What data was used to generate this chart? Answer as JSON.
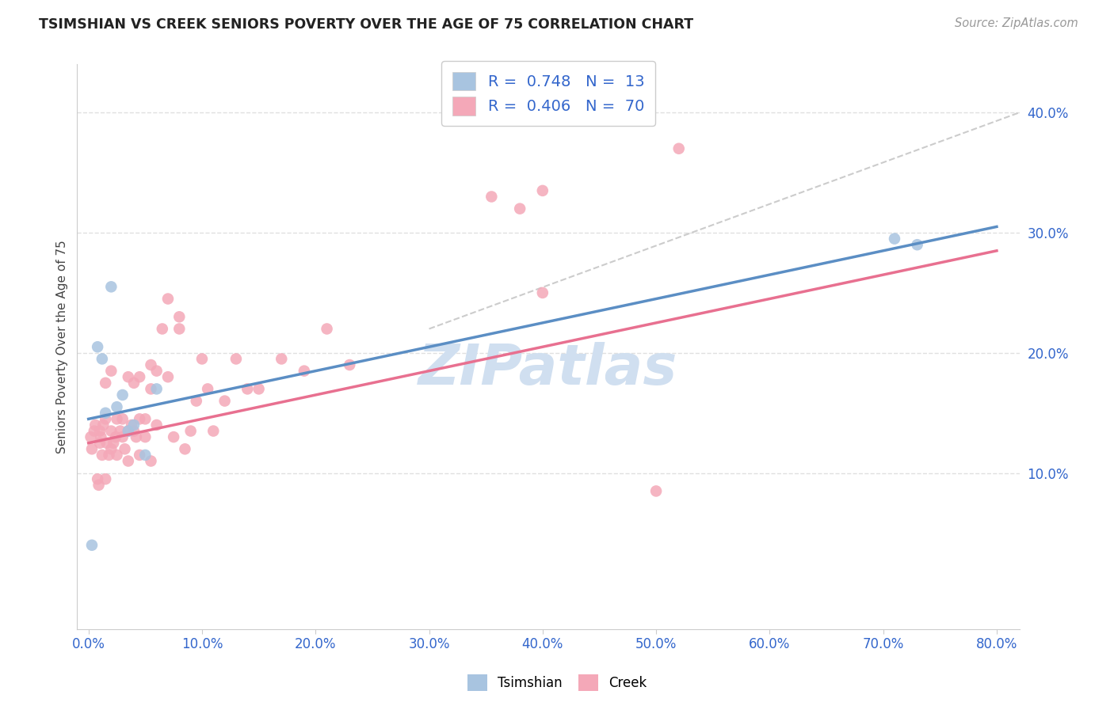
{
  "title": "TSIMSHIAN VS CREEK SENIORS POVERTY OVER THE AGE OF 75 CORRELATION CHART",
  "source": "Source: ZipAtlas.com",
  "ylabel": "Seniors Poverty Over the Age of 75",
  "xlim": [
    -1,
    82
  ],
  "ylim": [
    -3,
    44
  ],
  "xlabel_vals": [
    0,
    10,
    20,
    30,
    40,
    50,
    60,
    70,
    80
  ],
  "ylabel_vals": [
    10,
    20,
    30,
    40
  ],
  "tsimshian_R": 0.748,
  "tsimshian_N": 13,
  "creek_R": 0.406,
  "creek_N": 70,
  "tsimshian_color": "#a8c4e0",
  "creek_color": "#f4a8b8",
  "tsimshian_line_color": "#5b8ec4",
  "creek_line_color": "#e87090",
  "ref_line_color": "#cccccc",
  "watermark_color": "#d0dff0",
  "background_color": "#ffffff",
  "grid_color": "#e0e0e0",
  "tsimshian_x": [
    0.3,
    0.8,
    1.2,
    1.5,
    2.0,
    2.5,
    3.0,
    3.5,
    4.0,
    5.0,
    6.0,
    71.0,
    73.0
  ],
  "tsimshian_y": [
    4.0,
    20.5,
    19.5,
    15.0,
    25.5,
    15.5,
    16.5,
    13.5,
    14.0,
    11.5,
    17.0,
    29.5,
    29.0
  ],
  "creek_x": [
    0.2,
    0.3,
    0.5,
    0.6,
    0.8,
    0.9,
    1.0,
    1.0,
    1.1,
    1.2,
    1.3,
    1.5,
    1.5,
    1.6,
    1.8,
    2.0,
    2.0,
    2.2,
    2.4,
    2.5,
    2.5,
    2.8,
    3.0,
    3.0,
    3.2,
    3.5,
    3.5,
    3.8,
    4.0,
    4.0,
    4.2,
    4.5,
    4.5,
    5.0,
    5.0,
    5.5,
    5.5,
    6.0,
    6.0,
    6.5,
    7.0,
    7.5,
    8.0,
    8.5,
    9.0,
    9.5,
    10.0,
    10.5,
    11.0,
    12.0,
    13.0,
    14.0,
    15.0,
    17.0,
    19.0,
    21.0,
    23.0,
    40.0,
    50.0,
    52.0,
    40.0,
    38.0,
    35.5,
    7.0,
    8.0,
    4.5,
    1.5,
    2.0,
    3.5,
    5.5
  ],
  "creek_y": [
    13.0,
    12.0,
    13.5,
    14.0,
    9.5,
    9.0,
    13.5,
    12.5,
    13.0,
    11.5,
    14.0,
    14.5,
    9.5,
    12.5,
    11.5,
    13.5,
    12.0,
    12.5,
    13.0,
    11.5,
    14.5,
    13.5,
    14.5,
    13.0,
    12.0,
    13.5,
    11.0,
    14.0,
    13.5,
    17.5,
    13.0,
    18.0,
    11.5,
    14.5,
    13.0,
    17.0,
    11.0,
    18.5,
    14.0,
    22.0,
    18.0,
    13.0,
    22.0,
    12.0,
    13.5,
    16.0,
    19.5,
    17.0,
    13.5,
    16.0,
    19.5,
    17.0,
    17.0,
    19.5,
    18.5,
    22.0,
    19.0,
    25.0,
    8.5,
    37.0,
    33.5,
    32.0,
    33.0,
    24.5,
    23.0,
    14.5,
    17.5,
    18.5,
    18.0,
    19.0
  ],
  "tsimshian_line_x0": 0,
  "tsimshian_line_y0": 14.5,
  "tsimshian_line_x1": 80,
  "tsimshian_line_y1": 30.5,
  "creek_line_x0": 0,
  "creek_line_y0": 12.5,
  "creek_line_x1": 80,
  "creek_line_y1": 28.5,
  "ref_line_x0": 30,
  "ref_line_y0": 22,
  "ref_line_x1": 82,
  "ref_line_y1": 40
}
